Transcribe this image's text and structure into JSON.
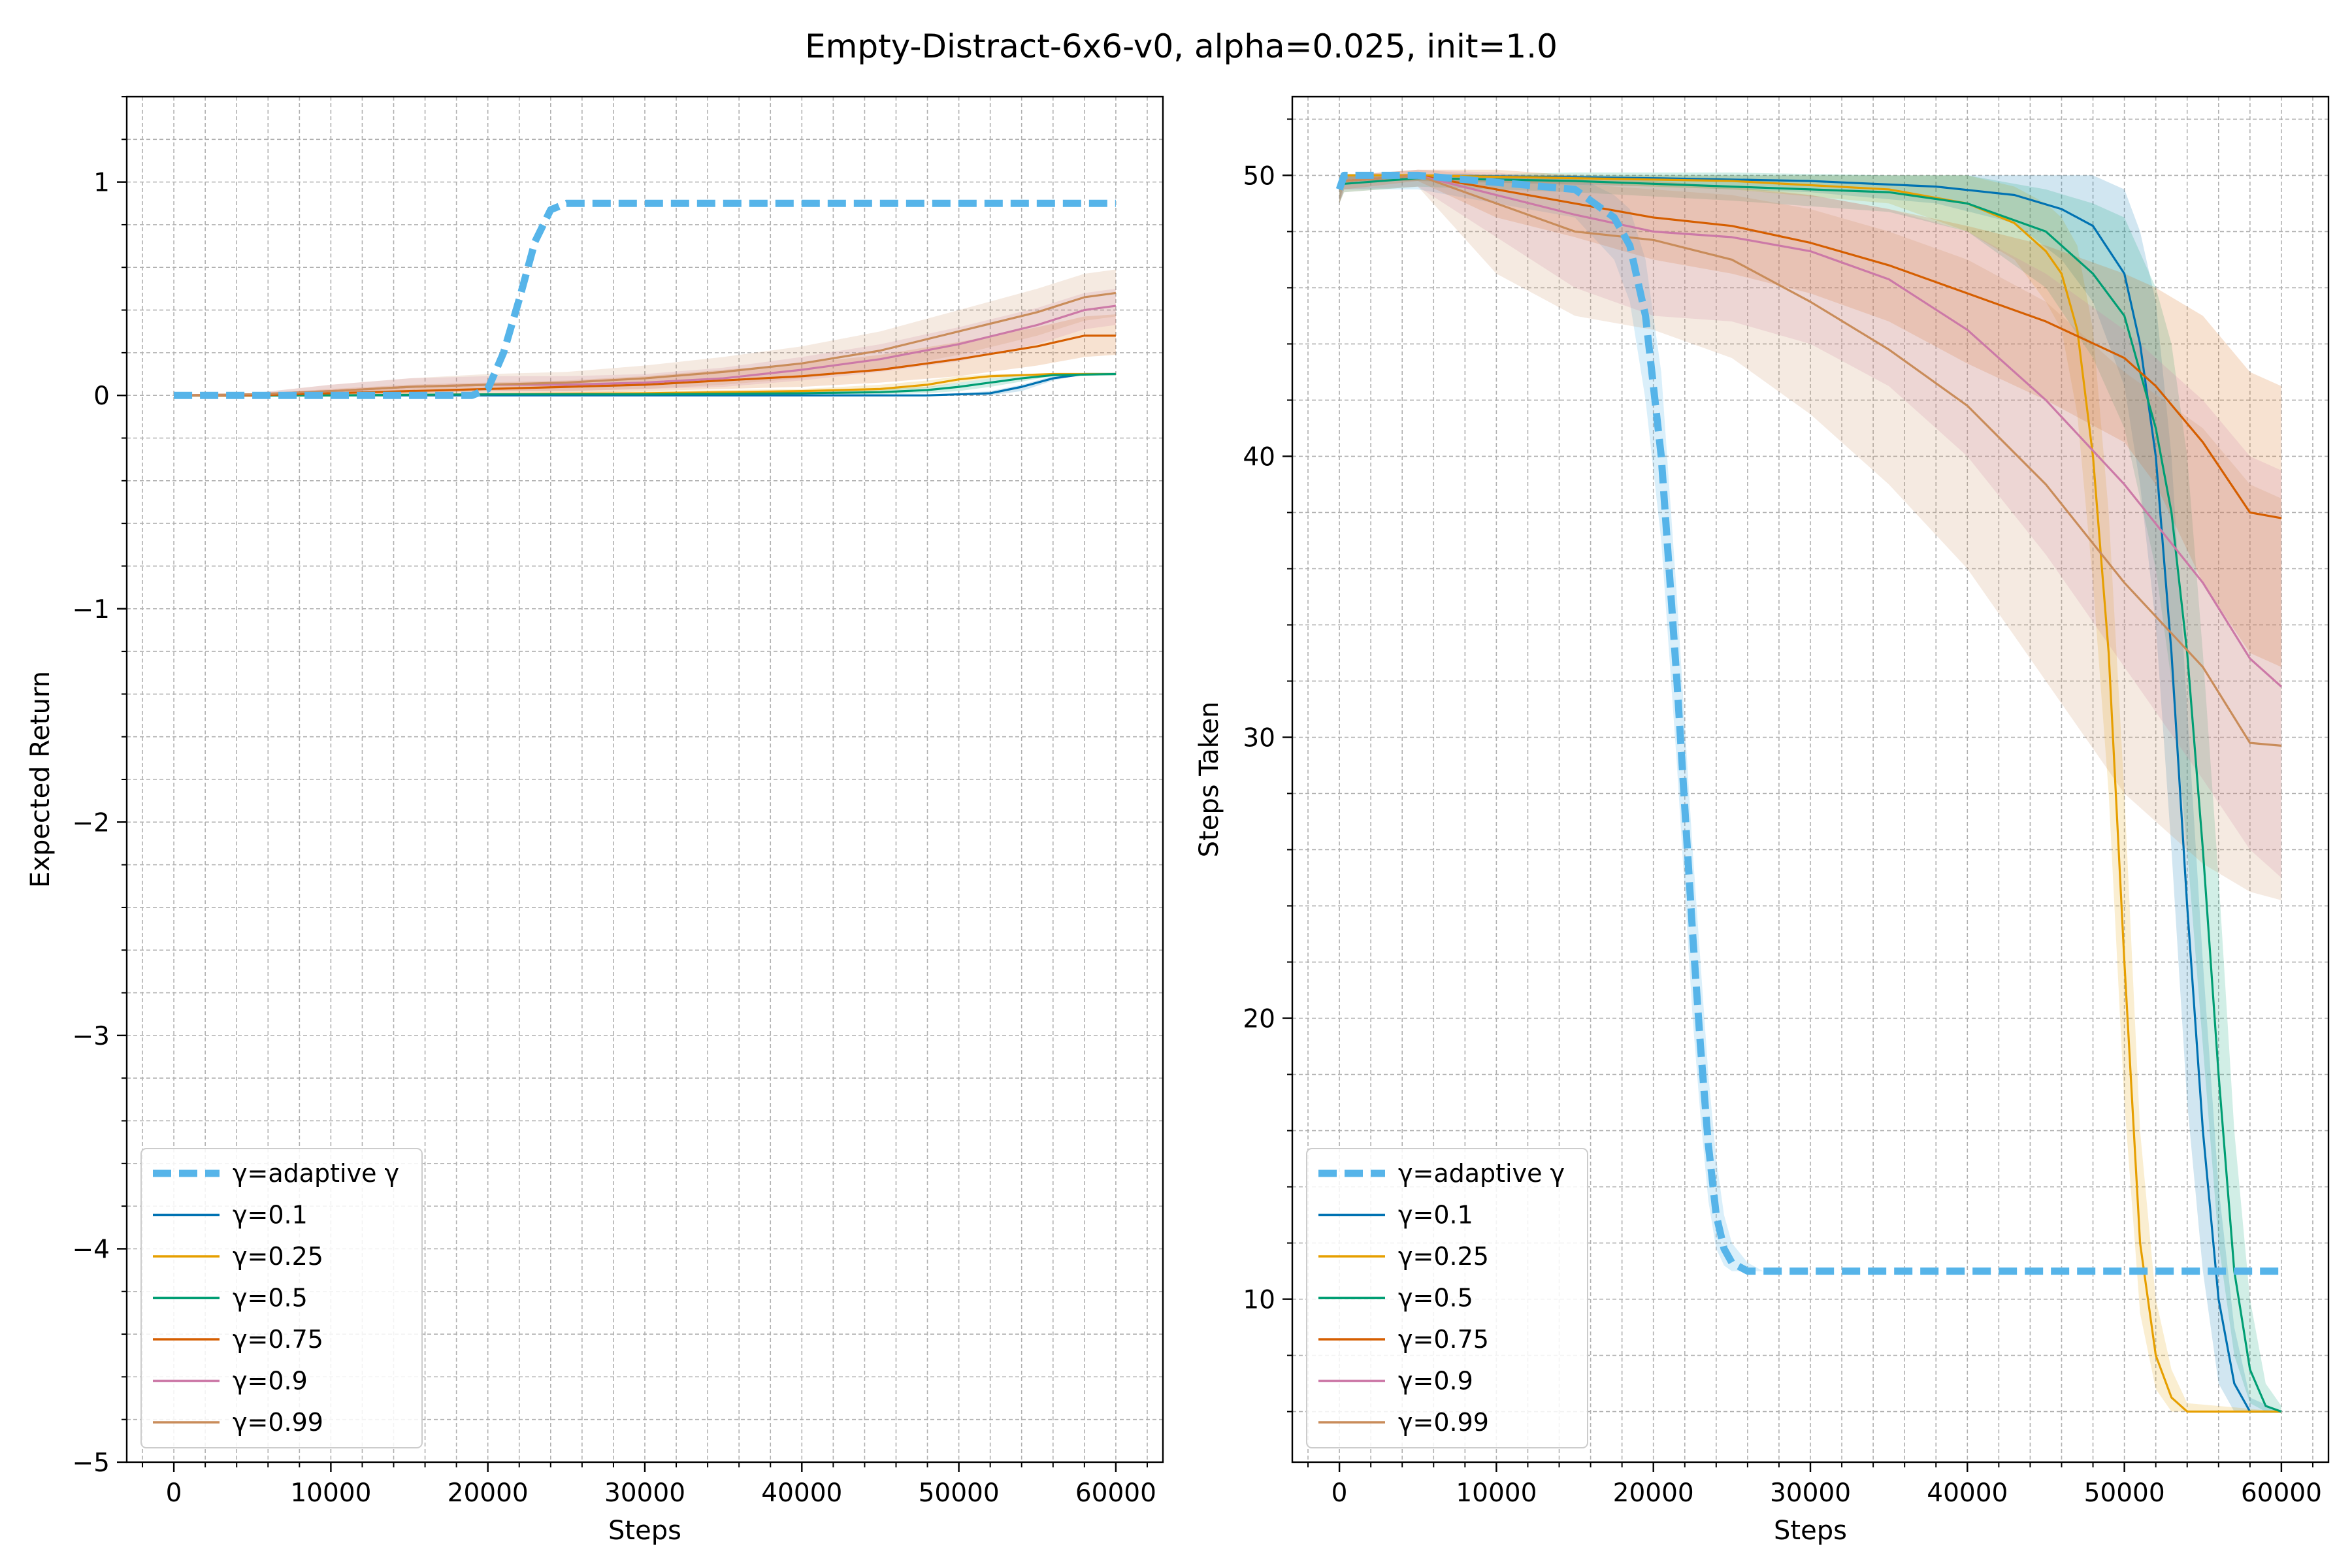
{
  "figure": {
    "title": "Empty-Distract-6x6-v0, alpha=0.025, init=1.0"
  },
  "colors": {
    "adaptive": "#56b4e9",
    "g01": "#0072b2",
    "g025": "#e69f00",
    "g05": "#009e73",
    "g075": "#d55e00",
    "g09": "#cc79a7",
    "g099": "#c98c5a"
  },
  "chart_data": [
    {
      "type": "line",
      "xlabel": "Steps",
      "ylabel": "Expected Return",
      "xlim": [
        -3000,
        63000
      ],
      "ylim": [
        -5,
        1.4
      ],
      "xticks": [
        0,
        10000,
        20000,
        30000,
        40000,
        50000,
        60000
      ],
      "yticks": [
        -5,
        -4,
        -3,
        -2,
        -1,
        0,
        1
      ],
      "ytick_labels": [
        "−5",
        "−4",
        "−3",
        "−2",
        "−1",
        "0",
        "1"
      ],
      "grid": true,
      "legend_position": "lower-left",
      "series": [
        {
          "name": "γ=adaptive γ",
          "color_key": "adaptive",
          "style": "dashed",
          "x": [
            0,
            19000,
            20000,
            21000,
            22000,
            23000,
            24000,
            25000,
            27000,
            60000
          ],
          "y": [
            0,
            0,
            0.03,
            0.2,
            0.45,
            0.72,
            0.87,
            0.9,
            0.9,
            0.9
          ]
        },
        {
          "name": "γ=0.1",
          "color_key": "g01",
          "x": [
            0,
            10000,
            20000,
            30000,
            40000,
            48000,
            50000,
            52000,
            54000,
            56000,
            58000,
            60000
          ],
          "y": [
            0,
            0,
            0,
            0,
            0,
            0,
            0.005,
            0.01,
            0.04,
            0.08,
            0.1,
            0.1
          ],
          "band_upper": [
            0,
            0.005,
            0.005,
            0.005,
            0.005,
            0.005,
            0.01,
            0.02,
            0.05,
            0.09,
            0.1,
            0.1
          ],
          "band_lower": [
            0,
            0,
            0,
            0,
            0,
            0,
            0,
            0,
            0.02,
            0.07,
            0.1,
            0.1
          ]
        },
        {
          "name": "γ=0.25",
          "color_key": "g025",
          "x": [
            0,
            10000,
            20000,
            30000,
            40000,
            45000,
            48000,
            50000,
            52000,
            54000,
            56000,
            60000
          ],
          "y": [
            0,
            0,
            0.005,
            0.01,
            0.02,
            0.03,
            0.05,
            0.075,
            0.09,
            0.095,
            0.1,
            0.1
          ],
          "band_upper": [
            0,
            0.005,
            0.01,
            0.02,
            0.03,
            0.05,
            0.07,
            0.09,
            0.1,
            0.1,
            0.1,
            0.1
          ],
          "band_lower": [
            0,
            0,
            0,
            0.005,
            0.01,
            0.02,
            0.035,
            0.06,
            0.08,
            0.09,
            0.1,
            0.1
          ]
        },
        {
          "name": "γ=0.5",
          "color_key": "g05",
          "x": [
            0,
            10000,
            20000,
            30000,
            40000,
            45000,
            48000,
            50000,
            52000,
            54000,
            56000,
            60000
          ],
          "y": [
            0,
            0,
            0.005,
            0.005,
            0.01,
            0.015,
            0.025,
            0.04,
            0.06,
            0.08,
            0.095,
            0.1
          ],
          "band_upper": [
            0,
            0.005,
            0.01,
            0.01,
            0.02,
            0.03,
            0.04,
            0.06,
            0.08,
            0.095,
            0.1,
            0.1
          ],
          "band_lower": [
            0,
            0,
            0,
            0,
            0.005,
            0.005,
            0.01,
            0.02,
            0.04,
            0.065,
            0.09,
            0.1
          ]
        },
        {
          "name": "γ=0.75",
          "color_key": "g075",
          "x": [
            0,
            5000,
            10000,
            15000,
            20000,
            25000,
            30000,
            35000,
            40000,
            45000,
            50000,
            55000,
            58000,
            60000
          ],
          "y": [
            0,
            0,
            0.01,
            0.02,
            0.03,
            0.04,
            0.05,
            0.07,
            0.09,
            0.12,
            0.17,
            0.23,
            0.28,
            0.28
          ],
          "band_upper": [
            0,
            0.005,
            0.03,
            0.05,
            0.06,
            0.07,
            0.09,
            0.12,
            0.15,
            0.19,
            0.25,
            0.32,
            0.37,
            0.38
          ],
          "band_lower": [
            0,
            0,
            0,
            0,
            0.005,
            0.01,
            0.02,
            0.03,
            0.04,
            0.06,
            0.09,
            0.14,
            0.18,
            0.19
          ]
        },
        {
          "name": "γ=0.9",
          "color_key": "g09",
          "x": [
            0,
            5000,
            10000,
            15000,
            20000,
            25000,
            30000,
            35000,
            40000,
            45000,
            50000,
            55000,
            58000,
            60000
          ],
          "y": [
            0,
            0.005,
            0.02,
            0.04,
            0.05,
            0.05,
            0.06,
            0.08,
            0.12,
            0.17,
            0.24,
            0.33,
            0.4,
            0.42
          ],
          "band_upper": [
            0,
            0.01,
            0.05,
            0.08,
            0.09,
            0.09,
            0.1,
            0.13,
            0.18,
            0.24,
            0.32,
            0.41,
            0.48,
            0.5
          ],
          "band_lower": [
            0,
            0,
            0,
            0.01,
            0.02,
            0.02,
            0.03,
            0.04,
            0.07,
            0.11,
            0.16,
            0.24,
            0.31,
            0.33
          ]
        },
        {
          "name": "γ=0.99",
          "color_key": "g099",
          "x": [
            0,
            5000,
            10000,
            15000,
            20000,
            25000,
            30000,
            35000,
            40000,
            45000,
            50000,
            55000,
            58000,
            60000
          ],
          "y": [
            0,
            0.005,
            0.02,
            0.04,
            0.05,
            0.06,
            0.08,
            0.11,
            0.15,
            0.21,
            0.3,
            0.39,
            0.46,
            0.48
          ],
          "band_upper": [
            0,
            0.01,
            0.05,
            0.08,
            0.1,
            0.11,
            0.14,
            0.18,
            0.23,
            0.3,
            0.4,
            0.5,
            0.57,
            0.59
          ],
          "band_lower": [
            0,
            0,
            0,
            0.01,
            0.02,
            0.02,
            0.03,
            0.05,
            0.08,
            0.12,
            0.19,
            0.28,
            0.35,
            0.37
          ]
        }
      ]
    },
    {
      "type": "line",
      "xlabel": "Steps",
      "ylabel": "Steps Taken",
      "xlim": [
        -3000,
        63000
      ],
      "ylim": [
        4.2,
        52.8
      ],
      "xticks": [
        0,
        10000,
        20000,
        30000,
        40000,
        50000,
        60000
      ],
      "yticks": [
        10,
        20,
        30,
        40,
        50
      ],
      "ytick_labels": [
        "10",
        "20",
        "30",
        "40",
        "50"
      ],
      "grid": true,
      "legend_position": "lower-left",
      "series": [
        {
          "name": "γ=adaptive γ",
          "color_key": "adaptive",
          "style": "dashed",
          "x": [
            0,
            300,
            5000,
            15000,
            17500,
            18500,
            19500,
            20500,
            21000,
            21500,
            22000,
            22500,
            23000,
            23500,
            24000,
            24500,
            25000,
            26000,
            27000,
            60000
          ],
          "y": [
            49.5,
            50,
            50,
            49.5,
            48.5,
            47.5,
            45,
            40,
            36,
            32,
            27.5,
            23,
            19,
            15.5,
            13,
            11.8,
            11.3,
            11,
            11,
            11
          ],
          "band_upper": [
            50,
            50,
            50,
            50,
            49.3,
            48.8,
            47,
            43,
            39,
            35,
            30.5,
            26,
            22,
            18,
            15,
            13,
            12,
            11.3,
            11,
            11
          ],
          "band_lower": [
            49,
            49.5,
            49.5,
            48.5,
            47,
            45.5,
            42,
            37,
            33,
            29,
            24.5,
            20,
            16.5,
            13.5,
            11.8,
            11.2,
            11,
            11,
            11,
            11
          ]
        },
        {
          "name": "γ=0.1",
          "color_key": "g01",
          "x": [
            0,
            300,
            5000,
            20000,
            30000,
            38000,
            43000,
            46000,
            48000,
            50000,
            51000,
            52000,
            53000,
            54000,
            55000,
            56000,
            57000,
            58000,
            60000
          ],
          "y": [
            49.5,
            50,
            50,
            49.9,
            49.8,
            49.6,
            49.3,
            48.8,
            48.2,
            46.5,
            44,
            40,
            33,
            24,
            16,
            10,
            7,
            6,
            6
          ],
          "band_upper": [
            50,
            50,
            50,
            50,
            50,
            50,
            50,
            50,
            50,
            49.5,
            48,
            45.5,
            40,
            31,
            22,
            14,
            9,
            6.5,
            6
          ],
          "band_lower": [
            49,
            49.8,
            49.8,
            49.6,
            49.4,
            49,
            48.3,
            47,
            45.5,
            42.5,
            39,
            34,
            26,
            17,
            11,
            7,
            6,
            6,
            6
          ]
        },
        {
          "name": "γ=0.25",
          "color_key": "g025",
          "x": [
            0,
            300,
            5000,
            15000,
            25000,
            35000,
            40000,
            43000,
            45000,
            46000,
            47000,
            48000,
            49000,
            50000,
            51000,
            52000,
            53000,
            54000,
            60000
          ],
          "y": [
            49.5,
            50,
            50,
            49.9,
            49.8,
            49.5,
            49,
            48.3,
            47.3,
            46.5,
            44.5,
            40,
            33,
            22,
            12,
            8,
            6.5,
            6,
            6
          ],
          "band_upper": [
            50,
            50,
            50,
            50,
            50,
            50,
            50,
            49.6,
            49,
            48.5,
            47.5,
            44.5,
            38,
            28,
            16,
            10,
            7.5,
            6.3,
            6
          ],
          "band_lower": [
            49,
            49.8,
            49.8,
            49.7,
            49.5,
            49,
            48,
            47,
            45.5,
            44.5,
            41.5,
            35.5,
            28,
            17,
            9.5,
            6.8,
            6,
            6,
            6
          ]
        },
        {
          "name": "γ=0.5",
          "color_key": "g05",
          "x": [
            0,
            300,
            5000,
            15000,
            25000,
            35000,
            40000,
            45000,
            48000,
            50000,
            52000,
            53000,
            54000,
            55000,
            56000,
            57000,
            58000,
            59000,
            60000
          ],
          "y": [
            49.5,
            49.7,
            49.9,
            49.8,
            49.6,
            49.4,
            49,
            48,
            46.5,
            45,
            41,
            38,
            33,
            26,
            18,
            11,
            7.5,
            6.2,
            6
          ],
          "band_upper": [
            50,
            50,
            50,
            50.1,
            50.1,
            50,
            50,
            49.5,
            49,
            48.5,
            46,
            44,
            40,
            33,
            25,
            16,
            10,
            7,
            6.2
          ],
          "band_lower": [
            49,
            49.4,
            49.6,
            49.4,
            49.1,
            48.7,
            48,
            46,
            43.5,
            41,
            36,
            32,
            26,
            19,
            12,
            8,
            6.3,
            6,
            6
          ]
        },
        {
          "name": "γ=0.75",
          "color_key": "g075",
          "x": [
            0,
            300,
            5000,
            10000,
            15000,
            20000,
            25000,
            30000,
            35000,
            40000,
            45000,
            50000,
            52000,
            55000,
            58000,
            60000
          ],
          "y": [
            49.5,
            49.8,
            50,
            49.5,
            49,
            48.5,
            48.2,
            47.6,
            46.8,
            45.8,
            44.8,
            43.5,
            42.5,
            40.5,
            38,
            37.8
          ],
          "band_upper": [
            50,
            50,
            50.2,
            50.2,
            50,
            49.8,
            49.6,
            49.3,
            48.8,
            48.2,
            47.5,
            46.5,
            46,
            45,
            43,
            42.5
          ],
          "band_lower": [
            49,
            49.5,
            49.8,
            48.5,
            47.8,
            47,
            46.5,
            45.8,
            44.8,
            43.3,
            42,
            40.5,
            39,
            35.5,
            33,
            32.5
          ]
        },
        {
          "name": "γ=0.9",
          "color_key": "g09",
          "x": [
            0,
            300,
            5000,
            10000,
            15000,
            20000,
            25000,
            30000,
            35000,
            40000,
            45000,
            50000,
            55000,
            58000,
            60000
          ],
          "y": [
            49.5,
            49.8,
            50,
            49.3,
            48.6,
            48,
            47.8,
            47.3,
            46.3,
            44.5,
            42,
            39,
            35.5,
            32.8,
            31.8
          ],
          "band_upper": [
            50,
            50,
            50.2,
            50.1,
            49.8,
            49.6,
            49.5,
            49.3,
            48.8,
            48,
            46.5,
            44.5,
            42,
            40,
            39.5
          ],
          "band_lower": [
            49,
            49.5,
            49.6,
            47.8,
            46,
            45,
            44.8,
            44,
            42.5,
            40,
            36.5,
            32.5,
            28.5,
            26,
            25
          ]
        },
        {
          "name": "γ=0.99",
          "color_key": "g099",
          "x": [
            0,
            300,
            5000,
            10000,
            15000,
            20000,
            25000,
            30000,
            35000,
            40000,
            45000,
            50000,
            55000,
            58000,
            60000
          ],
          "y": [
            49.5,
            49.8,
            50,
            49,
            48,
            47.7,
            47,
            45.5,
            43.8,
            41.8,
            39,
            35.5,
            32.5,
            29.8,
            29.7
          ],
          "band_upper": [
            50,
            50,
            50.2,
            50,
            49.7,
            49.5,
            49.3,
            48.8,
            48,
            47,
            45.5,
            43,
            41,
            39,
            38.5
          ],
          "band_lower": [
            49,
            49.4,
            49.6,
            46.5,
            45,
            44.5,
            43.5,
            41.5,
            39,
            36,
            32,
            28,
            25.5,
            24.5,
            24.2
          ]
        }
      ]
    }
  ]
}
